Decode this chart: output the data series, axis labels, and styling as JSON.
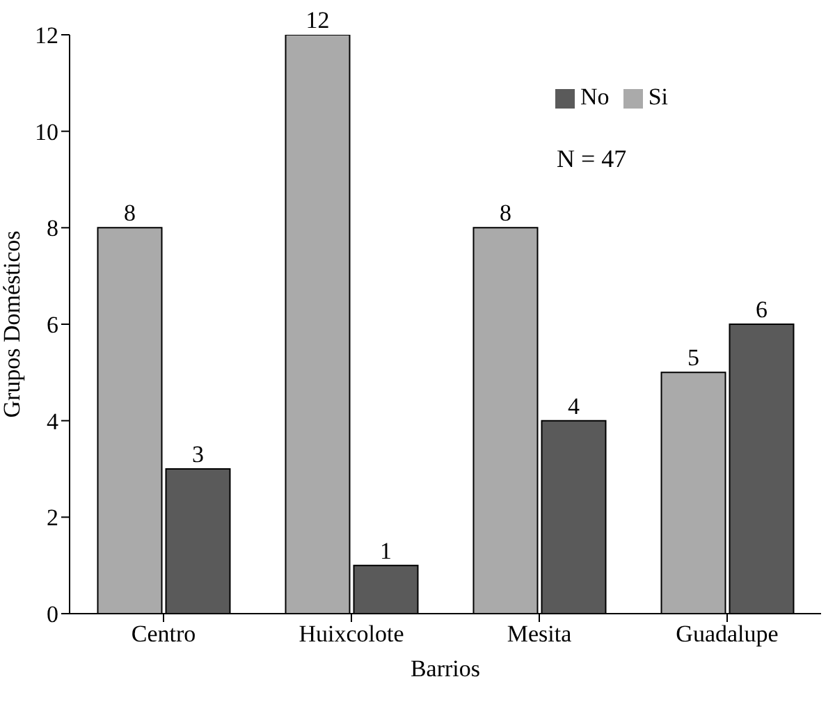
{
  "chart_data": {
    "type": "bar",
    "xlabel": "Barrios",
    "ylabel": "Grupos Domésticos",
    "categories": [
      "Centro",
      "Huixcolote",
      "Mesita",
      "Guadalupe"
    ],
    "series": [
      {
        "name": "Si",
        "color": "#aaaaaa",
        "values": [
          8,
          12,
          8,
          5
        ]
      },
      {
        "name": "No",
        "color": "#5a5a5a",
        "values": [
          3,
          1,
          4,
          6
        ]
      }
    ],
    "ylim": [
      0,
      12
    ],
    "yticks": [
      0,
      2,
      4,
      6,
      8,
      10,
      12
    ],
    "grid": false,
    "legend": "top right",
    "data_labels": true,
    "annotations": [
      "N = 47"
    ]
  }
}
